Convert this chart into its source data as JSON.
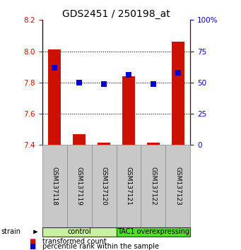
{
  "title": "GDS2451 / 250198_at",
  "samples": [
    "GSM137118",
    "GSM137119",
    "GSM137120",
    "GSM137121",
    "GSM137122",
    "GSM137123"
  ],
  "red_values": [
    8.01,
    7.47,
    7.415,
    7.84,
    7.415,
    8.06
  ],
  "blue_values": [
    62,
    50,
    49,
    56,
    49,
    58
  ],
  "ylim_left": [
    7.4,
    8.2
  ],
  "ylim_right": [
    0,
    100
  ],
  "yticks_left": [
    7.4,
    7.6,
    7.8,
    8.0,
    8.2
  ],
  "yticks_right": [
    0,
    25,
    50,
    75,
    100
  ],
  "groups": [
    {
      "label": "control",
      "indices": [
        0,
        1,
        2
      ],
      "color": "#c8f0a0"
    },
    {
      "label": "TAC1 overexpressing",
      "indices": [
        3,
        4,
        5
      ],
      "color": "#50e020"
    }
  ],
  "bar_color": "#cc1100",
  "dot_color": "#0000cc",
  "bar_width": 0.5,
  "dot_size": 28,
  "grid_yticks": [
    7.6,
    7.8,
    8.0
  ],
  "title_fontsize": 10,
  "tick_fontsize": 7.5,
  "sample_fontsize": 6.5,
  "group_fontsize": 7,
  "legend_fontsize": 7,
  "strain_label": "strain",
  "legend_red": "transformed count",
  "legend_blue": "percentile rank within the sample",
  "left_tick_color": "#cc1100",
  "right_tick_color": "#0000cc",
  "sample_box_color": "#c8c8c8",
  "sample_box_edge": "#888888"
}
